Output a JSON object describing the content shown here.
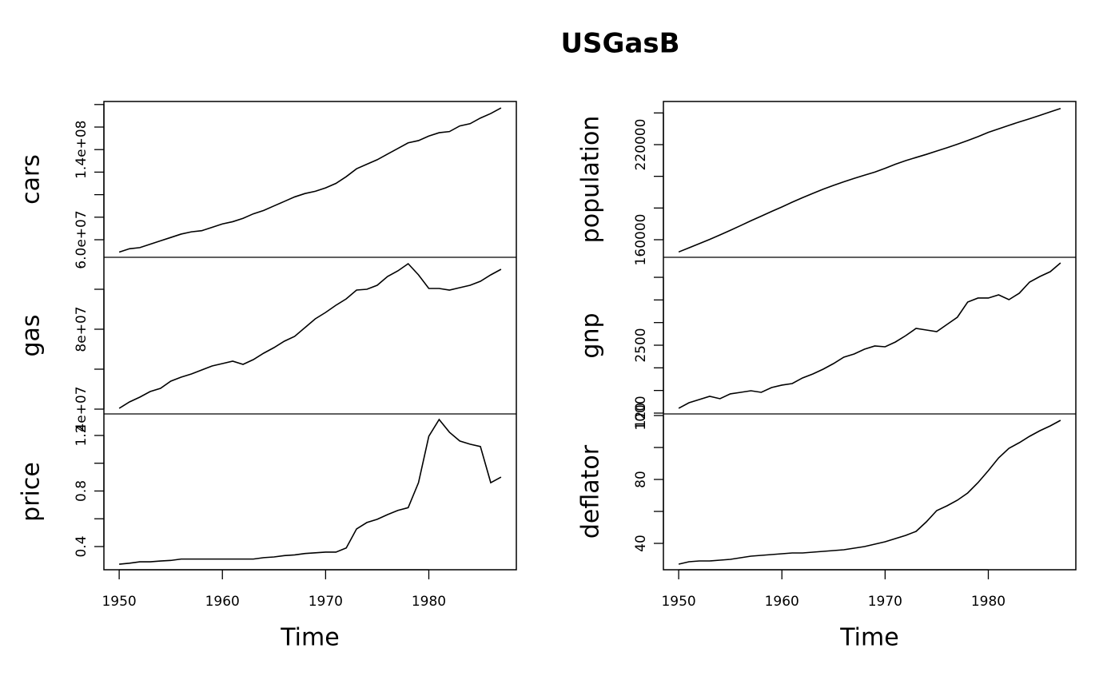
{
  "title": "USGasB",
  "chart_data": [
    {
      "type": "line",
      "ylabel": "cars",
      "color": "#000000",
      "x": [
        1950,
        1951,
        1952,
        1953,
        1954,
        1955,
        1956,
        1957,
        1958,
        1959,
        1960,
        1961,
        1962,
        1963,
        1964,
        1965,
        1966,
        1967,
        1968,
        1969,
        1970,
        1971,
        1972,
        1973,
        1974,
        1975,
        1976,
        1977,
        1978,
        1979,
        1980,
        1981,
        1982,
        1983,
        1984,
        1985,
        1986,
        1987
      ],
      "values": [
        49000000,
        52000000,
        53000000,
        56000000,
        59000000,
        62000000,
        65000000,
        67000000,
        68000000,
        71000000,
        74000000,
        76000000,
        79000000,
        83000000,
        86000000,
        90000000,
        94000000,
        98000000,
        101000000,
        103000000,
        106000000,
        110000000,
        116000000,
        123000000,
        127000000,
        131000000,
        136000000,
        141000000,
        146000000,
        148000000,
        152000000,
        155000000,
        156000000,
        161000000,
        163000000,
        168000000,
        172000000,
        177000000
      ],
      "xlim": [
        1948.52,
        1988.48
      ],
      "ylim": [
        44400000,
        182700000
      ],
      "yticks": [
        {
          "value": 60000000,
          "label": "6.0e+07"
        },
        {
          "value": 80000000,
          "label": null
        },
        {
          "value": 100000000,
          "label": null
        },
        {
          "value": 120000000,
          "label": null
        },
        {
          "value": 140000000,
          "label": "1.4e+08"
        },
        {
          "value": 160000000,
          "label": null
        },
        {
          "value": 180000000,
          "label": null
        }
      ]
    },
    {
      "type": "line",
      "ylabel": "gas",
      "color": "#000000",
      "x": [
        1950,
        1951,
        1952,
        1953,
        1954,
        1955,
        1956,
        1957,
        1958,
        1959,
        1960,
        1961,
        1962,
        1963,
        1964,
        1965,
        1966,
        1967,
        1968,
        1969,
        1970,
        1971,
        1972,
        1973,
        1974,
        1975,
        1976,
        1977,
        1978,
        1979,
        1980,
        1981,
        1982,
        1983,
        1984,
        1985,
        1986,
        1987
      ],
      "values": [
        40400000,
        43600000,
        46000000,
        48800000,
        50400000,
        54000000,
        56000000,
        57600000,
        59600000,
        61600000,
        62800000,
        64000000,
        62400000,
        64800000,
        68000000,
        70800000,
        74000000,
        76400000,
        80800000,
        85200000,
        88400000,
        92000000,
        95200000,
        99600000,
        100000000,
        102000000,
        106400000,
        109200000,
        112800000,
        107200000,
        100400000,
        100400000,
        99600000,
        100800000,
        102000000,
        104000000,
        107200000,
        110000000
      ],
      "xlim": [
        1948.52,
        1988.48
      ],
      "ylim": [
        37600000,
        116000000
      ],
      "yticks": [
        {
          "value": 40000000,
          "label": "4e+07"
        },
        {
          "value": 60000000,
          "label": null
        },
        {
          "value": 80000000,
          "label": "8e+07"
        },
        {
          "value": 100000000,
          "label": null
        }
      ]
    },
    {
      "type": "line",
      "ylabel": "price",
      "xlabel": "Time",
      "color": "#000000",
      "x": [
        1950,
        1951,
        1952,
        1953,
        1954,
        1955,
        1956,
        1957,
        1958,
        1959,
        1960,
        1961,
        1962,
        1963,
        1964,
        1965,
        1966,
        1967,
        1968,
        1969,
        1970,
        1971,
        1972,
        1973,
        1974,
        1975,
        1976,
        1977,
        1978,
        1979,
        1980,
        1981,
        1982,
        1983,
        1984,
        1985,
        1986,
        1987
      ],
      "values": [
        0.273,
        0.28,
        0.29,
        0.29,
        0.296,
        0.3,
        0.31,
        0.31,
        0.31,
        0.31,
        0.31,
        0.31,
        0.31,
        0.31,
        0.32,
        0.325,
        0.335,
        0.34,
        0.35,
        0.355,
        0.36,
        0.36,
        0.39,
        0.527,
        0.573,
        0.596,
        0.63,
        0.66,
        0.68,
        0.86,
        1.194,
        1.315,
        1.223,
        1.16,
        1.137,
        1.12,
        0.86,
        0.9
      ],
      "xlim": [
        1948.52,
        1988.48
      ],
      "ylim": [
        0.233,
        1.355
      ],
      "xticks": [
        1950,
        1960,
        1970,
        1980
      ],
      "yticks": [
        0.4,
        {
          "value": 0.6,
          "label": null
        },
        0.8,
        {
          "value": 1.0,
          "label": null
        },
        1.2
      ]
    },
    {
      "type": "line",
      "ylabel": "population",
      "color": "#000000",
      "x": [
        1950,
        1951,
        1952,
        1953,
        1954,
        1955,
        1956,
        1957,
        1958,
        1959,
        1960,
        1961,
        1962,
        1963,
        1964,
        1965,
        1966,
        1967,
        1968,
        1969,
        1970,
        1971,
        1972,
        1973,
        1974,
        1975,
        1976,
        1977,
        1978,
        1979,
        1980,
        1981,
        1982,
        1983,
        1984,
        1985,
        1986,
        1987
      ],
      "values": [
        152271,
        154878,
        157553,
        160184,
        163026,
        165931,
        168903,
        171984,
        174882,
        177830,
        180671,
        183691,
        186538,
        189242,
        191889,
        194303,
        196560,
        198712,
        200706,
        202677,
        205052,
        207661,
        209896,
        211909,
        213854,
        215973,
        218035,
        220239,
        222585,
        225055,
        227726,
        229966,
        232188,
        234307,
        236348,
        238466,
        240651,
        242804
      ],
      "xlim": [
        1948.52,
        1988.48
      ],
      "ylim": [
        148900,
        247230
      ],
      "yticks": [
        160000,
        {
          "value": 180000,
          "label": null
        },
        {
          "value": 200000,
          "label": null
        },
        220000,
        {
          "value": 240000,
          "label": null
        }
      ]
    },
    {
      "type": "line",
      "ylabel": "gnp",
      "color": "#000000",
      "x": [
        1950,
        1951,
        1952,
        1953,
        1954,
        1955,
        1956,
        1957,
        1958,
        1959,
        1960,
        1961,
        1962,
        1963,
        1964,
        1965,
        1966,
        1967,
        1968,
        1969,
        1970,
        1971,
        1972,
        1973,
        1974,
        1975,
        1976,
        1977,
        1978,
        1979,
        1980,
        1981,
        1982,
        1983,
        1984,
        1985,
        1986,
        1987
      ],
      "values": [
        1106,
        1229,
        1300,
        1371,
        1318,
        1424,
        1459,
        1494,
        1459,
        1565,
        1618,
        1653,
        1777,
        1865,
        1971,
        2094,
        2236,
        2306,
        2412,
        2483,
        2465,
        2571,
        2712,
        2871,
        2836,
        2800,
        2959,
        3118,
        3453,
        3542,
        3542,
        3612,
        3506,
        3648,
        3895,
        4018,
        4124,
        4318
      ],
      "xlim": [
        1948.52,
        1988.48
      ],
      "ylim": [
        982,
        4442
      ],
      "yticks": [
        1000,
        {
          "value": 1500,
          "label": null
        },
        {
          "value": 2000,
          "label": null
        },
        2500,
        {
          "value": 3000,
          "label": null
        },
        {
          "value": 3500,
          "label": null
        },
        {
          "value": 4000,
          "label": null
        }
      ]
    },
    {
      "type": "line",
      "ylabel": "deflator",
      "xlabel": "Time",
      "color": "#000000",
      "x": [
        1950,
        1951,
        1952,
        1953,
        1954,
        1955,
        1956,
        1957,
        1958,
        1959,
        1960,
        1961,
        1962,
        1963,
        1964,
        1965,
        1966,
        1967,
        1968,
        1969,
        1970,
        1971,
        1972,
        1973,
        1974,
        1975,
        1976,
        1977,
        1978,
        1979,
        1980,
        1981,
        1982,
        1983,
        1984,
        1985,
        1986,
        1987
      ],
      "values": [
        27,
        28.5,
        29,
        29,
        29.5,
        30,
        31,
        32,
        32.5,
        33,
        33.5,
        34,
        34,
        34.5,
        35,
        35.5,
        36,
        37,
        38,
        39.5,
        41,
        43,
        45,
        47.5,
        53.5,
        60.5,
        63.5,
        67,
        71.5,
        78,
        85.5,
        93.5,
        99.5,
        103,
        107,
        110.5,
        113.5,
        117
      ],
      "xlim": [
        1948.52,
        1988.48
      ],
      "ylim": [
        23.5,
        121
      ],
      "xticks": [
        1950,
        1960,
        1970,
        1980
      ],
      "yticks": [
        40,
        {
          "value": 60,
          "label": null
        },
        80,
        {
          "value": 100,
          "label": null
        },
        120
      ]
    }
  ]
}
